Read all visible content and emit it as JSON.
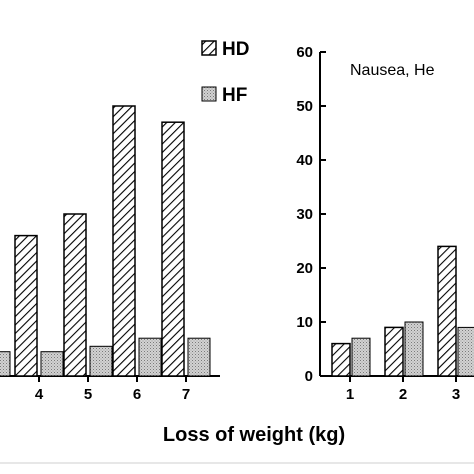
{
  "chart_data": [
    {
      "type": "bar",
      "categories": [
        "4",
        "5",
        "6",
        "7"
      ],
      "series": [
        {
          "name": "HD",
          "values": [
            26,
            30,
            50,
            47
          ]
        },
        {
          "name": "HF",
          "values": [
            4.5,
            5.5,
            7,
            7
          ]
        }
      ],
      "extra_bar_partial": {
        "series": "HF",
        "value": 4.5
      },
      "ylim": [
        0,
        60
      ],
      "legend_placement": "top-right"
    },
    {
      "type": "bar",
      "categories": [
        "1",
        "2",
        "3"
      ],
      "series": [
        {
          "name": "HD",
          "values": [
            6,
            9,
            24
          ]
        },
        {
          "name": "HF",
          "values": [
            7,
            10,
            9
          ]
        }
      ],
      "yticks": [
        "0",
        "10",
        "20",
        "30",
        "40",
        "50",
        "60"
      ],
      "ylim": [
        0,
        60
      ],
      "annotation": "Nausea, He"
    }
  ],
  "shared": {
    "xlabel": "Loss of weight (kg)"
  },
  "legend": [
    {
      "name": "HD",
      "pattern": "hatch"
    },
    {
      "name": "HF",
      "pattern": "dots"
    }
  ]
}
